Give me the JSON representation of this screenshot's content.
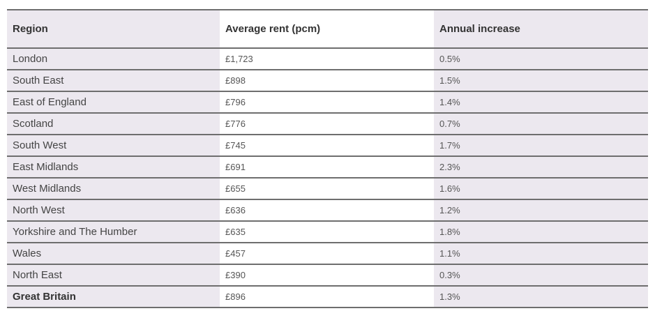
{
  "table": {
    "headers": [
      "Region",
      "Average rent (pcm)",
      "Annual increase"
    ],
    "rows": [
      {
        "region": "London",
        "rent": "£1,723",
        "increase": "0.5%"
      },
      {
        "region": "South East",
        "rent": "£898",
        "increase": "1.5%"
      },
      {
        "region": "East of England",
        "rent": "£796",
        "increase": "1.4%"
      },
      {
        "region": "Scotland",
        "rent": "£776",
        "increase": "0.7%"
      },
      {
        "region": "South West",
        "rent": "£745",
        "increase": "1.7%"
      },
      {
        "region": "East Midlands",
        "rent": "£691",
        "increase": "2.3%"
      },
      {
        "region": "West Midlands",
        "rent": "£655",
        "increase": "1.6%"
      },
      {
        "region": "North West",
        "rent": "£636",
        "increase": "1.2%"
      },
      {
        "region": "Yorkshire and The Humber",
        "rent": "£635",
        "increase": "1.8%"
      },
      {
        "region": "Wales",
        "rent": "£457",
        "increase": "1.1%"
      },
      {
        "region": "North East",
        "rent": "£390",
        "increase": "0.3%"
      },
      {
        "region": "Great Britain",
        "rent": "£896",
        "increase": "1.3%"
      }
    ]
  },
  "colors": {
    "band": "#ece8ef",
    "middle_column": "#ffffff",
    "rule": "#6e6e6e",
    "text": "#444444"
  }
}
